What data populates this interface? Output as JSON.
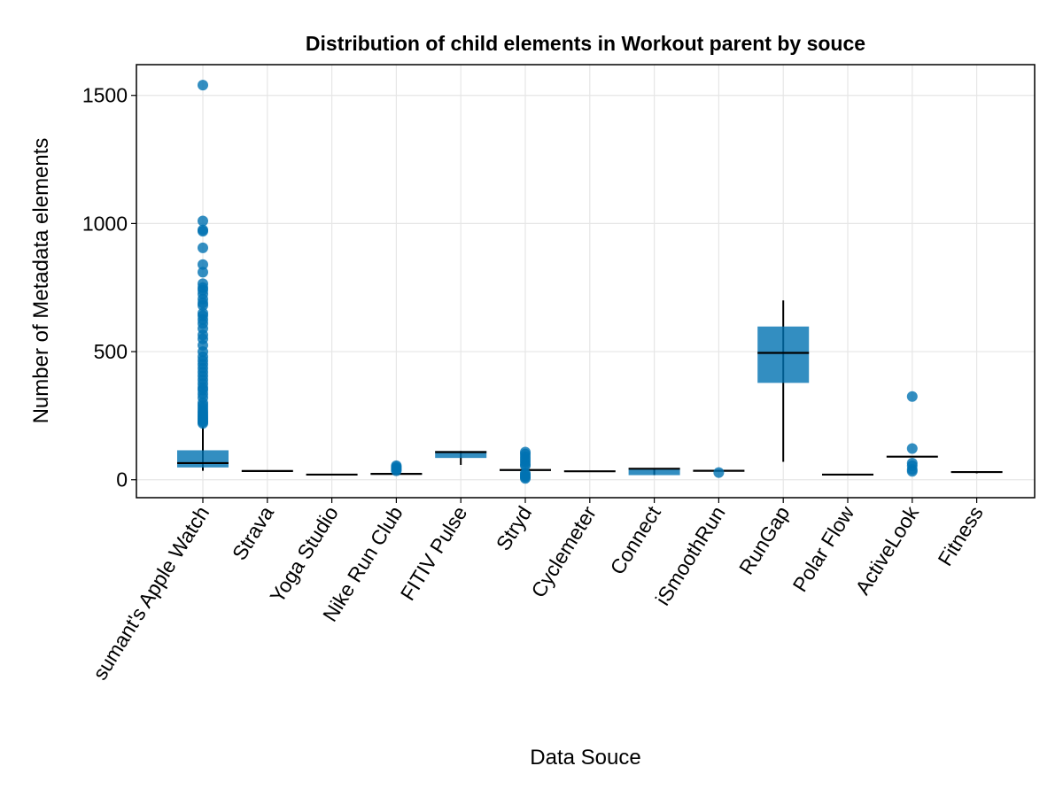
{
  "chart_data": {
    "type": "box",
    "title": "Distribution of child elements in Workout parent by souce",
    "xlabel": "Data Souce",
    "ylabel": "Number of Metadata elements",
    "ylim": [
      -70,
      1620
    ],
    "yticks": [
      0,
      500,
      1000,
      1500
    ],
    "grid": true,
    "color": "#0072B2",
    "median_color": "#000000",
    "categories": [
      "sumant's Apple Watch",
      "Strava",
      "Yoga Studio",
      "Nike Run Club",
      "FITIV Pulse",
      "Stryd",
      "Cyclemeter",
      "Connect",
      "iSmoothRun",
      "RunGap",
      "Polar Flow",
      "ActiveLook",
      "Fitness"
    ],
    "boxes": [
      {
        "q1": 48,
        "median": 65,
        "q3": 115,
        "whisker_low": 35,
        "whisker_high": 210,
        "outliers": [
          1540,
          1010,
          975,
          970,
          905,
          840,
          810,
          765,
          750,
          740,
          725,
          705,
          690,
          680,
          650,
          640,
          625,
          610,
          590,
          565,
          550,
          525,
          500,
          480,
          465,
          450,
          435,
          420,
          405,
          390,
          375,
          360,
          350,
          335,
          320,
          300,
          290,
          280,
          270,
          262,
          255,
          248,
          242,
          236,
          230,
          225,
          220
        ]
      },
      {
        "q1": 34,
        "median": 34,
        "q3": 34,
        "whisker_low": 34,
        "whisker_high": 34,
        "outliers": []
      },
      {
        "q1": 20,
        "median": 20,
        "q3": 20,
        "whisker_low": 20,
        "whisker_high": 20,
        "outliers": []
      },
      {
        "q1": 20,
        "median": 23,
        "q3": 25,
        "whisker_low": 20,
        "whisker_high": 25,
        "outliers": [
          35,
          40,
          45,
          50,
          55
        ]
      },
      {
        "q1": 85,
        "median": 108,
        "q3": 112,
        "whisker_low": 58,
        "whisker_high": 112,
        "outliers": []
      },
      {
        "q1": 35,
        "median": 38,
        "q3": 40,
        "whisker_low": 30,
        "whisker_high": 45,
        "outliers": [
          5,
          10,
          15,
          20,
          25,
          55,
          60,
          70,
          80,
          90,
          100,
          108
        ]
      },
      {
        "q1": 33,
        "median": 33,
        "q3": 33,
        "whisker_low": 33,
        "whisker_high": 33,
        "outliers": []
      },
      {
        "q1": 18,
        "median": 43,
        "q3": 45,
        "whisker_low": 18,
        "whisker_high": 45,
        "outliers": []
      },
      {
        "q1": 35,
        "median": 35,
        "q3": 35,
        "whisker_low": 35,
        "whisker_high": 35,
        "outliers": [
          28
        ]
      },
      {
        "q1": 378,
        "median": 495,
        "q3": 598,
        "whisker_low": 70,
        "whisker_high": 700,
        "outliers": []
      },
      {
        "q1": 20,
        "median": 20,
        "q3": 20,
        "whisker_low": 20,
        "whisker_high": 20,
        "outliers": []
      },
      {
        "q1": 90,
        "median": 90,
        "q3": 90,
        "whisker_low": 90,
        "whisker_high": 90,
        "outliers": [
          325,
          122,
          65,
          55,
          40,
          33
        ]
      },
      {
        "q1": 30,
        "median": 30,
        "q3": 32,
        "whisker_low": 25,
        "whisker_high": 32,
        "outliers": []
      }
    ]
  }
}
